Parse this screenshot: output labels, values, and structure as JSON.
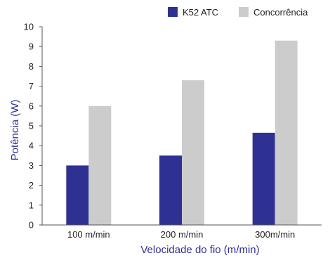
{
  "chart_data": {
    "type": "bar",
    "categories": [
      "100 m/min",
      "200 m/min",
      "300m/min"
    ],
    "series": [
      {
        "name": "K52 ATC",
        "values": [
          3.0,
          3.5,
          4.65
        ],
        "color": "#2e3192"
      },
      {
        "name": "Concorrência",
        "values": [
          6.0,
          7.3,
          9.3
        ],
        "color": "#cccccc"
      }
    ],
    "xlabel": "Velocidade do fio (m/min)",
    "ylabel": "Potência (W)",
    "ylim": [
      0,
      10
    ],
    "yticks": [
      0,
      1,
      2,
      3,
      4,
      5,
      6,
      7,
      8,
      9,
      10
    ],
    "grid": false,
    "legend_position": "top-right",
    "axis_title_color": "#2e3192"
  }
}
